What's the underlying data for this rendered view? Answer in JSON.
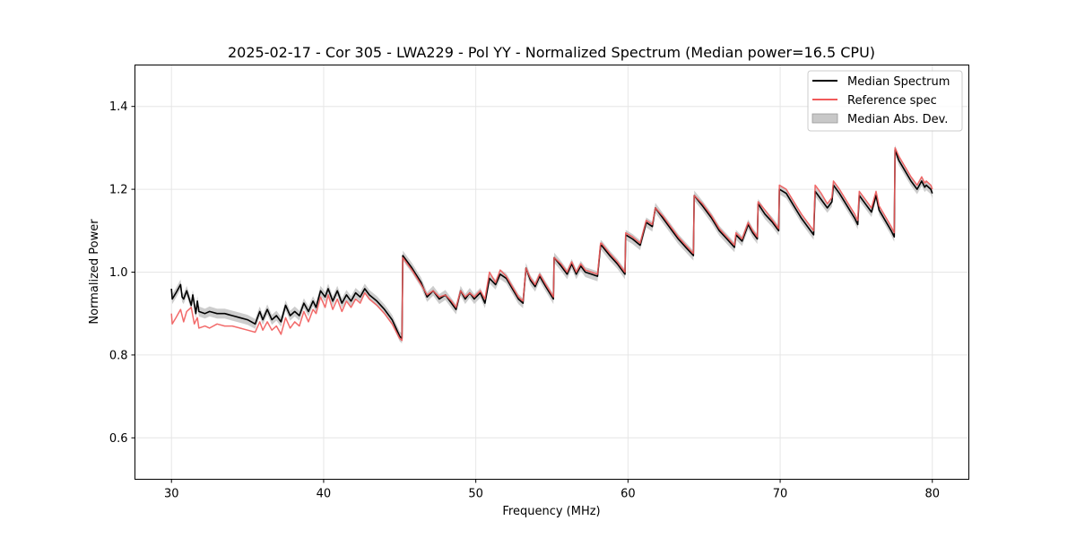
{
  "chart_data": {
    "type": "line",
    "title": "2025-02-17 - Cor 305 - LWA229 - Pol YY - Normalized Spectrum (Median power=16.5 CPU)",
    "xlabel": "Frequency (MHz)",
    "ylabel": "Normalized Power",
    "xlim": [
      27.6,
      82.4
    ],
    "ylim": [
      0.5,
      1.5
    ],
    "xticks": [
      30,
      40,
      50,
      60,
      70,
      80
    ],
    "yticks": [
      0.6,
      0.8,
      1.0,
      1.2,
      1.4
    ],
    "xtick_labels": [
      "30",
      "40",
      "50",
      "60",
      "70",
      "80"
    ],
    "ytick_labels": [
      "0.6",
      "0.8",
      "1.0",
      "1.2",
      "1.4"
    ],
    "grid": true,
    "legend_position": "top-right",
    "legend": [
      {
        "label": "Median Spectrum",
        "color": "#000000",
        "kind": "line"
      },
      {
        "label": "Reference spec",
        "color": "#f15a5a",
        "kind": "line"
      },
      {
        "label": "Median Abs. Dev.",
        "color": "#c8c8c8",
        "kind": "patch"
      }
    ],
    "series": [
      {
        "name": "Median Spectrum",
        "color": "#000000",
        "x": [
          30.0,
          30.05,
          30.3,
          30.6,
          30.7,
          30.8,
          31.0,
          31.3,
          31.4,
          31.6,
          31.7,
          31.8,
          32.2,
          32.5,
          33.0,
          33.5,
          34.0,
          34.5,
          35.0,
          35.5,
          35.8,
          36.0,
          36.3,
          36.6,
          36.9,
          37.2,
          37.5,
          37.8,
          38.1,
          38.4,
          38.7,
          39.0,
          39.3,
          39.5,
          39.8,
          40.1,
          40.3,
          40.6,
          40.9,
          41.2,
          41.5,
          41.8,
          42.1,
          42.4,
          42.7,
          43.0,
          43.5,
          44.0,
          44.5,
          45.0,
          45.15,
          45.2,
          45.8,
          46.4,
          46.8,
          47.2,
          47.6,
          48.0,
          48.4,
          48.7,
          49.0,
          49.3,
          49.6,
          49.9,
          50.3,
          50.6,
          50.9,
          51.3,
          51.6,
          52.0,
          52.4,
          52.8,
          53.1,
          53.3,
          53.6,
          53.9,
          54.2,
          54.6,
          55.1,
          55.15,
          55.6,
          56.0,
          56.3,
          56.6,
          56.9,
          57.2,
          57.6,
          58.0,
          58.2,
          58.25,
          58.8,
          59.3,
          59.8,
          59.85,
          60.3,
          60.8,
          61.2,
          61.6,
          61.8,
          62.3,
          62.8,
          63.3,
          63.8,
          64.3,
          64.35,
          64.9,
          65.5,
          66.0,
          66.5,
          67.0,
          67.1,
          67.5,
          67.9,
          68.2,
          68.5,
          68.55,
          69.0,
          69.5,
          69.9,
          69.95,
          70.4,
          70.9,
          71.4,
          71.8,
          72.2,
          72.3,
          72.7,
          73.1,
          73.4,
          73.5,
          73.9,
          74.4,
          74.9,
          75.1,
          75.2,
          75.6,
          76.0,
          76.3,
          76.5,
          76.9,
          77.3,
          77.5,
          77.55,
          77.8,
          78.2,
          78.6,
          79.0,
          79.3,
          79.5,
          79.6,
          79.9,
          80.0
        ],
        "y": [
          0.96,
          0.935,
          0.95,
          0.97,
          0.94,
          0.935,
          0.955,
          0.92,
          0.945,
          0.9,
          0.93,
          0.905,
          0.9,
          0.905,
          0.9,
          0.9,
          0.895,
          0.89,
          0.885,
          0.875,
          0.905,
          0.885,
          0.91,
          0.885,
          0.895,
          0.88,
          0.92,
          0.895,
          0.905,
          0.895,
          0.925,
          0.905,
          0.93,
          0.915,
          0.955,
          0.94,
          0.96,
          0.93,
          0.955,
          0.925,
          0.945,
          0.93,
          0.95,
          0.94,
          0.96,
          0.945,
          0.93,
          0.91,
          0.885,
          0.845,
          0.84,
          1.04,
          1.01,
          0.975,
          0.94,
          0.955,
          0.935,
          0.945,
          0.925,
          0.91,
          0.955,
          0.935,
          0.95,
          0.935,
          0.95,
          0.925,
          0.985,
          0.97,
          0.995,
          0.985,
          0.96,
          0.935,
          0.925,
          1.01,
          0.98,
          0.965,
          0.99,
          0.965,
          0.935,
          1.035,
          1.015,
          0.995,
          1.02,
          0.995,
          1.015,
          1.0,
          0.995,
          0.99,
          1.065,
          1.065,
          1.04,
          1.02,
          0.995,
          1.09,
          1.08,
          1.065,
          1.12,
          1.11,
          1.155,
          1.13,
          1.105,
          1.08,
          1.06,
          1.04,
          1.185,
          1.16,
          1.13,
          1.1,
          1.08,
          1.06,
          1.09,
          1.075,
          1.115,
          1.095,
          1.08,
          1.165,
          1.14,
          1.12,
          1.1,
          1.2,
          1.19,
          1.16,
          1.13,
          1.11,
          1.09,
          1.195,
          1.175,
          1.155,
          1.17,
          1.21,
          1.19,
          1.16,
          1.13,
          1.115,
          1.185,
          1.165,
          1.145,
          1.185,
          1.15,
          1.125,
          1.1,
          1.085,
          1.295,
          1.27,
          1.245,
          1.22,
          1.2,
          1.22,
          1.205,
          1.21,
          1.2,
          1.19
        ]
      },
      {
        "name": "Reference spec",
        "color": "#f15a5a",
        "x": [
          30.0,
          30.05,
          30.3,
          30.6,
          30.8,
          31.0,
          31.3,
          31.5,
          31.7,
          31.8,
          32.2,
          32.5,
          33.0,
          33.5,
          34.0,
          34.5,
          35.0,
          35.5,
          35.8,
          36.0,
          36.3,
          36.6,
          36.9,
          37.2,
          37.5,
          37.8,
          38.1,
          38.4,
          38.7,
          39.0,
          39.3,
          39.5,
          39.8,
          40.1,
          40.3,
          40.6,
          40.9,
          41.2,
          41.5,
          41.8,
          42.1,
          42.4,
          42.7,
          43.0,
          43.5,
          44.0,
          44.5,
          45.0,
          45.15,
          45.2,
          45.8,
          46.4,
          46.8,
          47.2,
          47.6,
          48.0,
          48.4,
          48.7,
          49.0,
          49.3,
          49.6,
          49.9,
          50.3,
          50.6,
          50.9,
          51.3,
          51.6,
          52.0,
          52.4,
          52.8,
          53.1,
          53.3,
          53.6,
          53.9,
          54.2,
          54.6,
          55.1,
          55.15,
          55.6,
          56.0,
          56.3,
          56.6,
          56.9,
          57.2,
          57.6,
          58.0,
          58.2,
          58.25,
          58.8,
          59.3,
          59.8,
          59.85,
          60.3,
          60.8,
          61.2,
          61.6,
          61.8,
          62.3,
          62.8,
          63.3,
          63.8,
          64.3,
          64.35,
          64.9,
          65.5,
          66.0,
          66.5,
          67.0,
          67.1,
          67.5,
          67.9,
          68.2,
          68.5,
          68.55,
          69.0,
          69.5,
          69.9,
          69.95,
          70.4,
          70.9,
          71.4,
          71.8,
          72.2,
          72.3,
          72.7,
          73.1,
          73.4,
          73.5,
          73.9,
          74.4,
          74.9,
          75.1,
          75.2,
          75.6,
          76.0,
          76.3,
          76.5,
          76.9,
          77.3,
          77.5,
          77.55,
          77.8,
          78.2,
          78.6,
          79.0,
          79.3,
          79.5,
          79.6,
          79.9,
          80.0
        ],
        "y": [
          0.9,
          0.875,
          0.89,
          0.91,
          0.88,
          0.905,
          0.915,
          0.875,
          0.89,
          0.865,
          0.87,
          0.865,
          0.875,
          0.87,
          0.87,
          0.865,
          0.86,
          0.855,
          0.88,
          0.86,
          0.88,
          0.86,
          0.87,
          0.85,
          0.89,
          0.865,
          0.88,
          0.87,
          0.905,
          0.88,
          0.91,
          0.9,
          0.94,
          0.915,
          0.945,
          0.91,
          0.935,
          0.905,
          0.93,
          0.915,
          0.935,
          0.925,
          0.95,
          0.935,
          0.92,
          0.9,
          0.875,
          0.84,
          0.835,
          1.035,
          1.005,
          0.97,
          0.945,
          0.955,
          0.94,
          0.945,
          0.93,
          0.915,
          0.955,
          0.94,
          0.95,
          0.94,
          0.955,
          0.935,
          1.0,
          0.975,
          1.005,
          0.99,
          0.965,
          0.94,
          0.93,
          1.01,
          0.985,
          0.97,
          0.995,
          0.97,
          0.94,
          1.035,
          1.02,
          1.0,
          1.025,
          1.0,
          1.02,
          1.005,
          1.0,
          0.995,
          1.07,
          1.07,
          1.045,
          1.025,
          1.0,
          1.095,
          1.085,
          1.07,
          1.125,
          1.115,
          1.155,
          1.135,
          1.11,
          1.085,
          1.065,
          1.045,
          1.185,
          1.165,
          1.135,
          1.105,
          1.085,
          1.065,
          1.095,
          1.08,
          1.12,
          1.1,
          1.085,
          1.17,
          1.15,
          1.125,
          1.105,
          1.21,
          1.2,
          1.17,
          1.14,
          1.12,
          1.1,
          1.21,
          1.19,
          1.165,
          1.18,
          1.22,
          1.2,
          1.17,
          1.14,
          1.125,
          1.195,
          1.175,
          1.155,
          1.195,
          1.16,
          1.135,
          1.11,
          1.095,
          1.3,
          1.28,
          1.255,
          1.23,
          1.21,
          1.23,
          1.215,
          1.22,
          1.21,
          1.2
        ]
      }
    ],
    "mad_band": {
      "name": "Median Abs. Dev.",
      "color": "#c8c8c8",
      "half_width": 0.012
    }
  }
}
